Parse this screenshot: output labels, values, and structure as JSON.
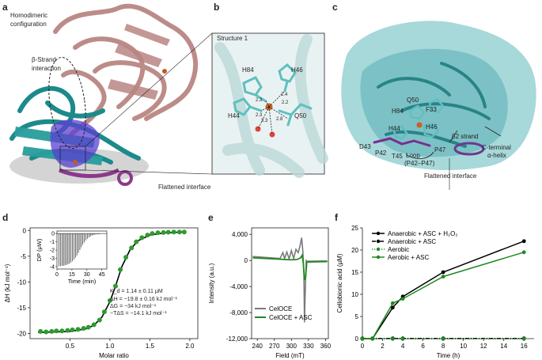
{
  "panel_a": {
    "letter": "a",
    "label_homodimer": "Homodimeric configuration",
    "label_strand": "β-Strand interaction",
    "label_interface": "Flattened interface"
  },
  "panel_b": {
    "letter": "b",
    "title": "Structure 1",
    "residues": [
      "H84",
      "H46",
      "H44",
      "Q50"
    ],
    "distances": [
      "2.4",
      "2.2",
      "2.3",
      "2.3",
      "2.8",
      "3.3"
    ]
  },
  "panel_c": {
    "letter": "c",
    "residues": [
      "Q50",
      "F33",
      "H84",
      "H44",
      "H46",
      "D43",
      "P42",
      "T45",
      "P47"
    ],
    "label_strand": "β2 strand",
    "label_loop": "Loop",
    "label_loop_range": "(P42–P47)",
    "label_cterm": "C-terminal",
    "label_helix": "α-helix",
    "label_interface": "Flattened interface"
  },
  "panel_d": {
    "letter": "d",
    "params": {
      "kd": "K_d = 1.14 ± 0.11 μM",
      "dh": "ΔH = −19.8 ± 0.16 kJ mol⁻¹",
      "dg": "ΔG = −34 kJ mol⁻¹",
      "tds": "−TΔS = −14.1 kJ mol⁻¹"
    },
    "inset": {
      "ylabel": "DP (μW)",
      "xlabel": "Time (min)",
      "xticks": [
        "0",
        "15",
        "30",
        "45"
      ],
      "yticks": [
        "0",
        "-1",
        "-2",
        "-3",
        "-4"
      ]
    }
  },
  "panel_e": {
    "letter": "e"
  },
  "panel_f": {
    "letter": "f"
  },
  "chart_data": [
    {
      "panel": "d",
      "type": "scatter",
      "xlabel": "Molar ratio",
      "ylabel": "ΔH (kJ mol⁻¹)",
      "xlim": [
        0,
        2.1
      ],
      "ylim": [
        -21,
        0.5
      ],
      "xticks": [
        "0.5",
        "1.0",
        "1.5",
        "2.0"
      ],
      "yticks": [
        "0",
        "-5",
        "-10",
        "-15",
        "-20"
      ],
      "points": [
        [
          0.13,
          -19.6
        ],
        [
          0.2,
          -19.7
        ],
        [
          0.27,
          -19.6
        ],
        [
          0.33,
          -19.5
        ],
        [
          0.4,
          -19.5
        ],
        [
          0.47,
          -19.4
        ],
        [
          0.53,
          -19.3
        ],
        [
          0.6,
          -19.2
        ],
        [
          0.67,
          -19.0
        ],
        [
          0.73,
          -18.8
        ],
        [
          0.8,
          -18.3
        ],
        [
          0.87,
          -17.4
        ],
        [
          0.93,
          -15.8
        ],
        [
          1.0,
          -13.6
        ],
        [
          1.07,
          -10.8
        ],
        [
          1.13,
          -7.6
        ],
        [
          1.2,
          -5.2
        ],
        [
          1.27,
          -3.4
        ],
        [
          1.33,
          -2.2
        ],
        [
          1.4,
          -1.4
        ],
        [
          1.47,
          -0.9
        ],
        [
          1.53,
          -0.6
        ],
        [
          1.6,
          -0.45
        ],
        [
          1.67,
          -0.4
        ],
        [
          1.73,
          -0.35
        ],
        [
          1.8,
          -0.3
        ],
        [
          1.87,
          -0.3
        ],
        [
          1.93,
          -0.3
        ]
      ],
      "fit": [
        [
          0.1,
          -19.8
        ],
        [
          0.5,
          -19.6
        ],
        [
          0.7,
          -19.1
        ],
        [
          0.8,
          -18.4
        ],
        [
          0.9,
          -16.8
        ],
        [
          1.0,
          -13.8
        ],
        [
          1.07,
          -10.8
        ],
        [
          1.15,
          -7.0
        ],
        [
          1.25,
          -3.8
        ],
        [
          1.35,
          -2.0
        ],
        [
          1.5,
          -0.9
        ],
        [
          1.7,
          -0.45
        ],
        [
          1.95,
          -0.3
        ]
      ]
    },
    {
      "panel": "e",
      "type": "line",
      "xlabel": "Field (mT)",
      "ylabel": "Intensity (a.u.)",
      "xlim": [
        230,
        365
      ],
      "ylim": [
        -12000,
        5000
      ],
      "xticks": [
        "240",
        "270",
        "300",
        "330",
        "360"
      ],
      "yticks": [
        "4,000",
        "0",
        "-4,000",
        "-8,000",
        "-12,000"
      ],
      "legend": [
        "CelOCE",
        "CelOCE + ASC"
      ],
      "series": [
        {
          "name": "CelOCE",
          "color": "#7a7a7a",
          "points": [
            [
              232,
              600
            ],
            [
              280,
              300
            ],
            [
              285,
              1200
            ],
            [
              288,
              300
            ],
            [
              292,
              1300
            ],
            [
              296,
              250
            ],
            [
              300,
              1500
            ],
            [
              304,
              300
            ],
            [
              308,
              1700
            ],
            [
              312,
              1200
            ],
            [
              315,
              2200
            ],
            [
              318,
              3500
            ],
            [
              320,
              1500
            ],
            [
              322,
              -2000
            ],
            [
              323,
              -9500
            ],
            [
              324,
              -6000
            ],
            [
              326,
              0
            ],
            [
              330,
              -300
            ],
            [
              340,
              -250
            ],
            [
              363,
              -200
            ]
          ]
        },
        {
          "name": "CelOCE + ASC",
          "color": "#1f8a1f",
          "points": [
            [
              232,
              400
            ],
            [
              300,
              100
            ],
            [
              310,
              150
            ],
            [
              316,
              400
            ],
            [
              319,
              800
            ],
            [
              321,
              -500
            ],
            [
              323,
              -3000
            ],
            [
              325,
              -2500
            ],
            [
              327,
              -300
            ],
            [
              330,
              -150
            ],
            [
              363,
              -100
            ]
          ]
        }
      ]
    },
    {
      "panel": "f",
      "type": "line",
      "xlabel": "Time (h)",
      "ylabel": "Cellobionic acid (μM)",
      "xlim": [
        0,
        17
      ],
      "ylim": [
        0,
        25
      ],
      "xticks": [
        "0",
        "2",
        "4",
        "6",
        "8",
        "10",
        "12",
        "14",
        "16"
      ],
      "yticks": [
        "0",
        "5",
        "10",
        "15",
        "20",
        "25"
      ],
      "series": [
        {
          "name": "Anaerobic + ASC + H₂O₂",
          "color": "#000000",
          "dash": "solid",
          "marker": "filled-circle",
          "points": [
            [
              0,
              0
            ],
            [
              1,
              0
            ],
            [
              3,
              7
            ],
            [
              4,
              9.5
            ],
            [
              8,
              15
            ],
            [
              16,
              22
            ]
          ]
        },
        {
          "name": "Anaerobic + ASC",
          "color": "#000000",
          "dash": "dashdot",
          "marker": "filled-circle",
          "points": [
            [
              0,
              0
            ],
            [
              1,
              0
            ],
            [
              3,
              0
            ],
            [
              4,
              0
            ],
            [
              8,
              0
            ],
            [
              16,
              0
            ]
          ]
        },
        {
          "name": "Aerobic",
          "color": "#1f8a1f",
          "dash": "dotted",
          "marker": "filled-circle",
          "points": [
            [
              0,
              0
            ],
            [
              1,
              0
            ],
            [
              3,
              0
            ],
            [
              4,
              0
            ],
            [
              8,
              0
            ],
            [
              16,
              0
            ]
          ]
        },
        {
          "name": "Aerobic + ASC",
          "color": "#1f8a1f",
          "dash": "solid",
          "marker": "filled-circle",
          "points": [
            [
              0,
              0
            ],
            [
              1,
              0
            ],
            [
              3,
              8
            ],
            [
              4,
              9
            ],
            [
              8,
              14
            ],
            [
              16,
              19.5
            ]
          ]
        }
      ]
    }
  ]
}
